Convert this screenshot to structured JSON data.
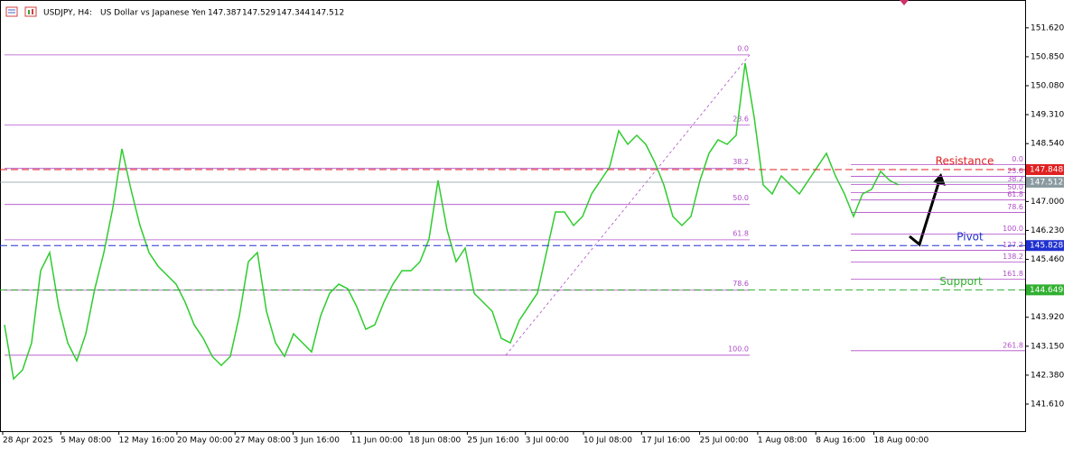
{
  "chart_data": {
    "type": "line",
    "symbol": "USDJPY, H4:",
    "description": "US Dollar vs Japanese Yen",
    "ohlc": [
      147.387,
      147.529,
      147.344,
      147.512
    ],
    "color": "#2ecc2e",
    "values": [
      143.72,
      142.28,
      142.52,
      143.24,
      145.16,
      145.64,
      144.2,
      143.24,
      142.76,
      143.48,
      144.68,
      145.64,
      146.84,
      148.4,
      147.32,
      146.36,
      145.64,
      145.28,
      145.04,
      144.8,
      144.32,
      143.72,
      143.36,
      142.88,
      142.64,
      142.88,
      143.96,
      145.4,
      145.64,
      144.08,
      143.24,
      142.88,
      143.48,
      143.24,
      143.0,
      143.96,
      144.56,
      144.8,
      144.68,
      144.2,
      143.6,
      143.72,
      144.32,
      144.8,
      145.16,
      145.16,
      145.4,
      146.0,
      147.56,
      146.24,
      145.4,
      145.76,
      144.56,
      144.32,
      144.08,
      143.36,
      143.24,
      143.84,
      144.2,
      144.56,
      145.64,
      146.72,
      146.72,
      146.36,
      146.6,
      147.2,
      147.56,
      147.92,
      148.88,
      148.52,
      148.76,
      148.52,
      148.04,
      147.44,
      146.6,
      146.36,
      146.6,
      147.56,
      148.28,
      148.64,
      148.52,
      148.76,
      150.68,
      149.24,
      147.44,
      147.2,
      147.68,
      147.44,
      147.2,
      147.56,
      147.92,
      148.28,
      147.68,
      147.2,
      146.6,
      147.2,
      147.32,
      147.8,
      147.56,
      147.44
    ],
    "ylim": [
      140.89,
      152.36
    ],
    "yticks": [
      {
        "value": 151.62,
        "label": "151.620"
      },
      {
        "value": 150.85,
        "label": "150.850"
      },
      {
        "value": 150.08,
        "label": "150.080"
      },
      {
        "value": 149.31,
        "label": "149.310"
      },
      {
        "value": 148.54,
        "label": "148.540"
      },
      {
        "value": 147,
        "label": "147.000"
      },
      {
        "value": 146.23,
        "label": "146.230"
      },
      {
        "value": 145.46,
        "label": "145.460"
      },
      {
        "value": 143.92,
        "label": "143.920"
      },
      {
        "value": 143.15,
        "label": "143.150"
      },
      {
        "value": 142.38,
        "label": "142.380"
      },
      {
        "value": 141.61,
        "label": "141.610"
      }
    ],
    "xtick_labels": [
      "28 Apr 2025",
      "5 May 08:00",
      "12 May 16:00",
      "20 May 00:00",
      "27 May 08:00",
      "3 Jun 16:00",
      "11 Jun 00:00",
      "18 Jun 08:00",
      "25 Jun 16:00",
      "3 Jul 00:00",
      "10 Jul 08:00",
      "17 Jul 16:00",
      "25 Jul 00:00",
      "1 Aug 08:00",
      "8 Aug 16:00",
      "18 Aug 00:00"
    ],
    "levels": [
      {
        "name": "Resistance",
        "value": 147.848,
        "color": "#e02020"
      },
      {
        "name": "Pivot",
        "value": 145.828,
        "color": "#2030d0"
      },
      {
        "name": "Support",
        "value": 144.649,
        "color": "#30b030"
      }
    ],
    "current_price": 147.512,
    "fib_left": [
      {
        "label": "0.0",
        "price": 150.9
      },
      {
        "label": "23.6",
        "price": 149.03
      },
      {
        "label": "38.2",
        "price": 147.88
      },
      {
        "label": "50.0",
        "price": 146.92
      },
      {
        "label": "61.8",
        "price": 145.98
      },
      {
        "label": "78.6",
        "price": 144.64
      },
      {
        "label": "100.0",
        "price": 142.91
      }
    ],
    "fib_right": [
      {
        "label": "0.0",
        "price": 147.98
      },
      {
        "label": "23.6",
        "price": 147.67
      },
      {
        "label": "38.2",
        "price": 147.45
      },
      {
        "label": "50.0",
        "price": 147.24
      },
      {
        "label": "61.8",
        "price": 147.04
      },
      {
        "label": "78.6",
        "price": 146.71
      },
      {
        "label": "100.0",
        "price": 146.13
      },
      {
        "label": "127.2",
        "price": 145.7
      },
      {
        "label": "138.2",
        "price": 145.39
      },
      {
        "label": "161.8",
        "price": 144.93
      },
      {
        "label": "261.8",
        "price": 143.03
      }
    ]
  }
}
